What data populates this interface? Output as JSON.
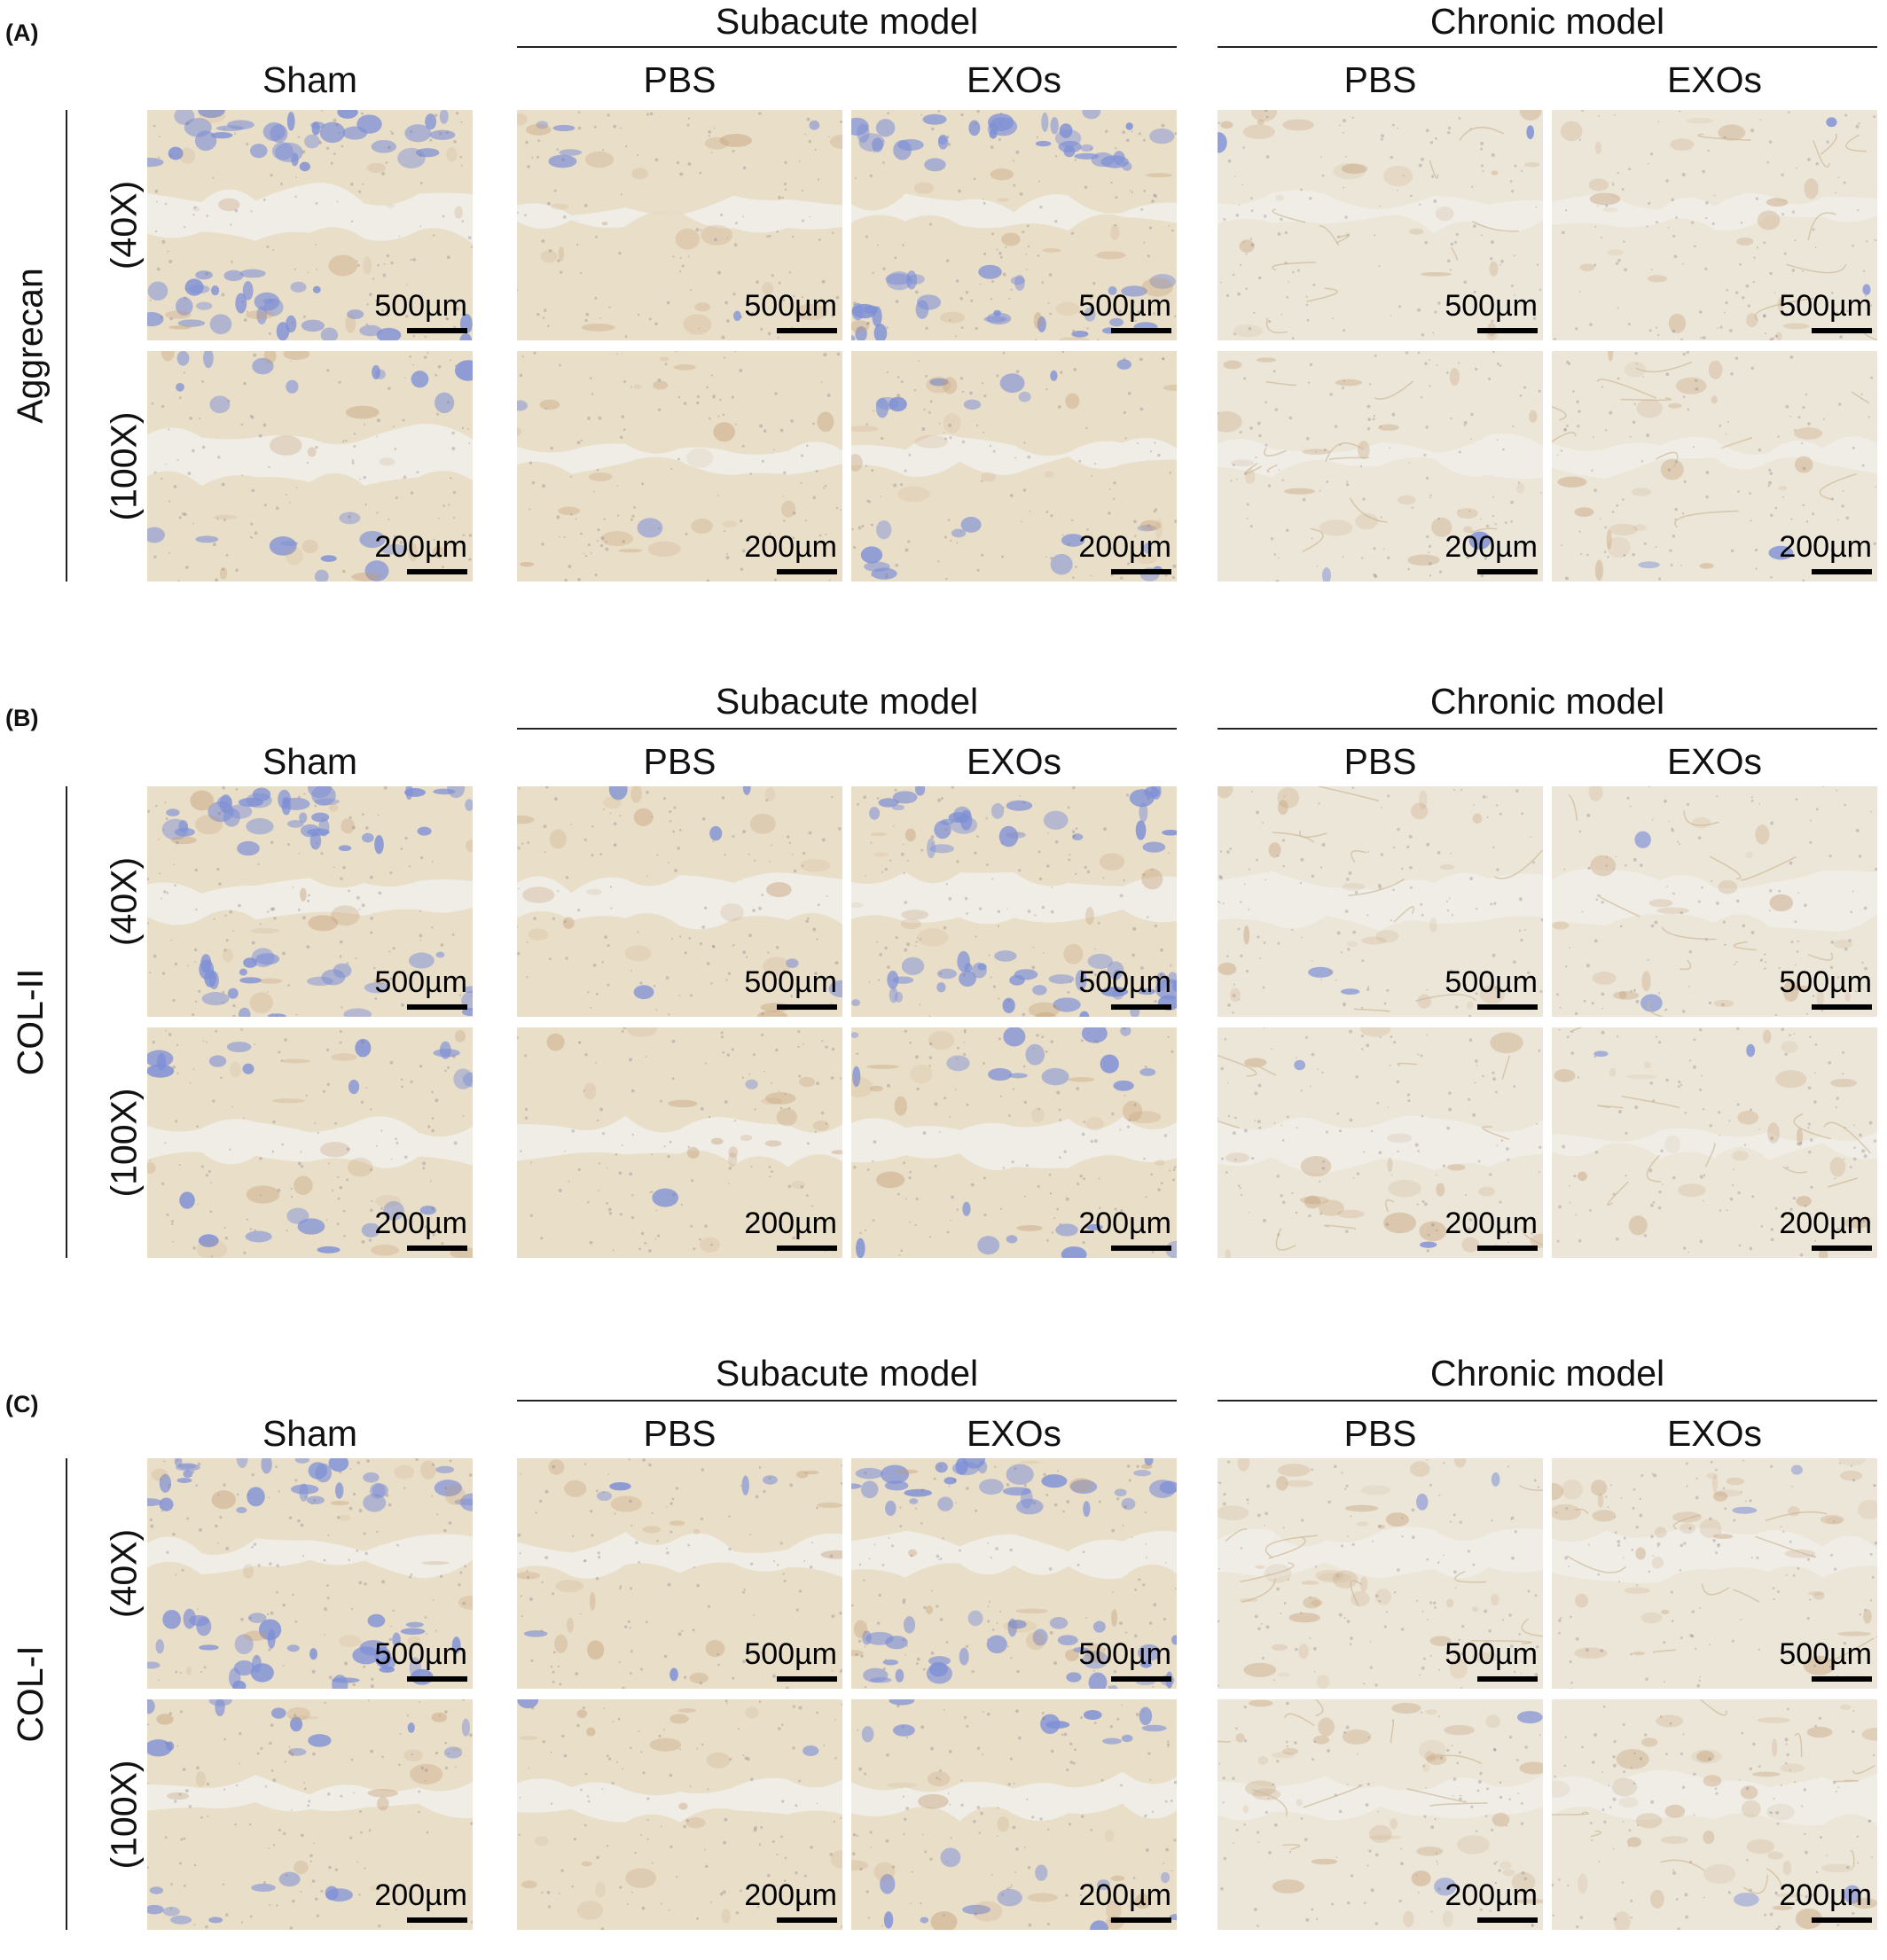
{
  "panels": [
    {
      "letter": "(A)",
      "marker": "Aggrecan",
      "groups": [
        "Subacute model",
        "Chronic model"
      ],
      "columns": [
        "Sham",
        "PBS",
        "EXOs",
        "PBS",
        "EXOs"
      ],
      "rows": [
        {
          "magnification": "(40X)",
          "scale": "500µm"
        },
        {
          "magnification": "(100X)",
          "scale": "200µm"
        }
      ]
    },
    {
      "letter": "(B)",
      "marker": "COL-II",
      "groups": [
        "Subacute model",
        "Chronic model"
      ],
      "columns": [
        "Sham",
        "PBS",
        "EXOs",
        "PBS",
        "EXOs"
      ],
      "rows": [
        {
          "magnification": "(40X)",
          "scale": "500µm"
        },
        {
          "magnification": "(100X)",
          "scale": "200µm"
        }
      ]
    },
    {
      "letter": "(C)",
      "marker": "COL-I",
      "groups": [
        "Subacute model",
        "Chronic model"
      ],
      "columns": [
        "Sham",
        "PBS",
        "EXOs",
        "PBS",
        "EXOs"
      ],
      "rows": [
        {
          "magnification": "(40X)",
          "scale": "500µm"
        },
        {
          "magnification": "(100X)",
          "scale": "200µm"
        }
      ]
    }
  ],
  "colors": {
    "background": "#efece4",
    "cartilage": "#e6dcc6",
    "bone_marrow_blue": "#7f91d8",
    "brown_stain": "#c9a37f"
  }
}
